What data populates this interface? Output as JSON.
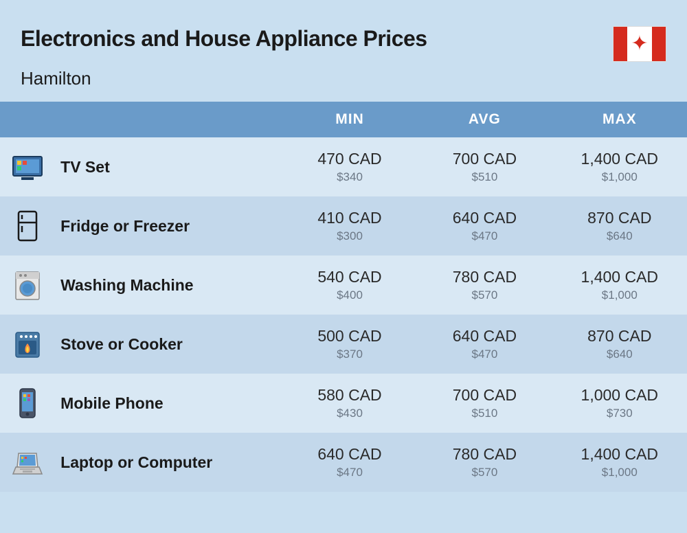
{
  "header": {
    "title": "Electronics and House Appliance Prices",
    "subtitle": "Hamilton",
    "flag": "canada"
  },
  "table": {
    "columns": [
      "",
      "",
      "MIN",
      "AVG",
      "MAX"
    ],
    "col_icon_width": 80,
    "col_label_width": 330,
    "col_price_width": 196,
    "header_bg": "#6a9bc9",
    "header_text_color": "#ffffff",
    "header_fontsize": 21,
    "row_odd_bg": "#d9e8f4",
    "row_even_bg": "#c3d8eb",
    "label_fontsize": 23,
    "price_main_fontsize": 23,
    "price_sub_fontsize": 17,
    "price_sub_color": "#6b7785",
    "rows": [
      {
        "icon": "tv",
        "label": "TV Set",
        "min": {
          "cad": "470 CAD",
          "usd": "$340"
        },
        "avg": {
          "cad": "700 CAD",
          "usd": "$510"
        },
        "max": {
          "cad": "1,400 CAD",
          "usd": "$1,000"
        }
      },
      {
        "icon": "fridge",
        "label": "Fridge or Freezer",
        "min": {
          "cad": "410 CAD",
          "usd": "$300"
        },
        "avg": {
          "cad": "640 CAD",
          "usd": "$470"
        },
        "max": {
          "cad": "870 CAD",
          "usd": "$640"
        }
      },
      {
        "icon": "washer",
        "label": "Washing Machine",
        "min": {
          "cad": "540 CAD",
          "usd": "$400"
        },
        "avg": {
          "cad": "780 CAD",
          "usd": "$570"
        },
        "max": {
          "cad": "1,400 CAD",
          "usd": "$1,000"
        }
      },
      {
        "icon": "stove",
        "label": "Stove or Cooker",
        "min": {
          "cad": "500 CAD",
          "usd": "$370"
        },
        "avg": {
          "cad": "640 CAD",
          "usd": "$470"
        },
        "max": {
          "cad": "870 CAD",
          "usd": "$640"
        }
      },
      {
        "icon": "phone",
        "label": "Mobile Phone",
        "min": {
          "cad": "580 CAD",
          "usd": "$430"
        },
        "avg": {
          "cad": "700 CAD",
          "usd": "$510"
        },
        "max": {
          "cad": "1,000 CAD",
          "usd": "$730"
        }
      },
      {
        "icon": "laptop",
        "label": "Laptop or Computer",
        "min": {
          "cad": "640 CAD",
          "usd": "$470"
        },
        "avg": {
          "cad": "780 CAD",
          "usd": "$570"
        },
        "max": {
          "cad": "1,400 CAD",
          "usd": "$1,000"
        }
      }
    ]
  },
  "page_bg": "#c9dff0"
}
